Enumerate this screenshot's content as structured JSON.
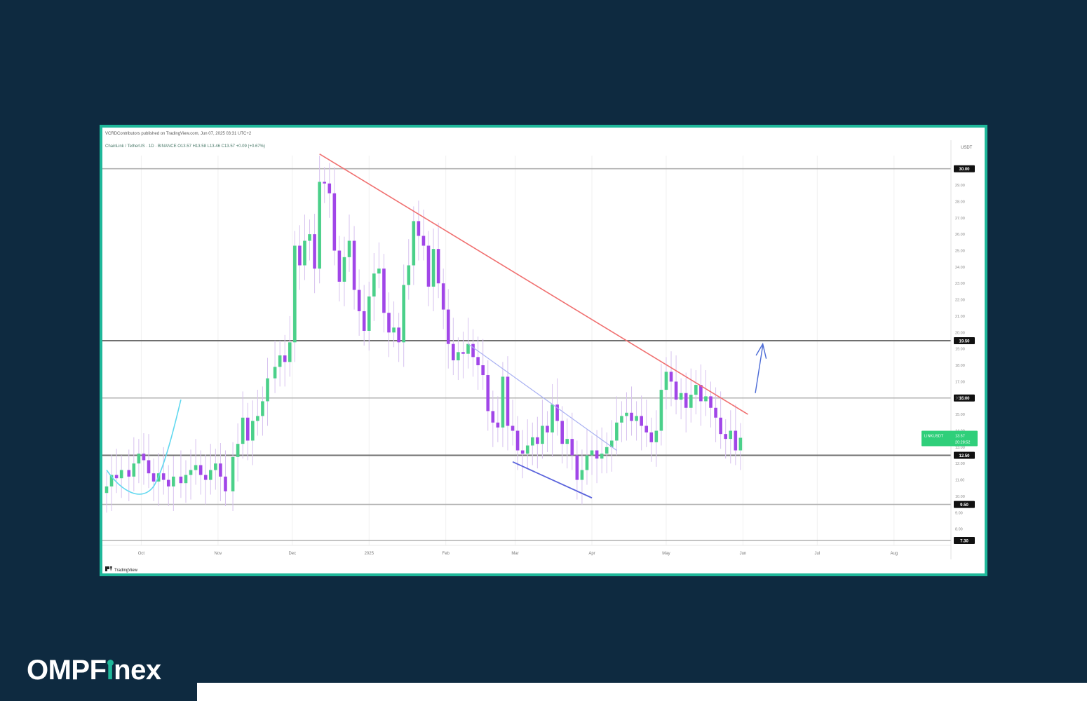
{
  "brand": {
    "logo_pre": "OMPF",
    "logo_i": "ı",
    "logo_post": "nex",
    "accent": "#1fb89a",
    "background": "#0e2a40"
  },
  "chart_data": {
    "type": "candlestick",
    "publisher": "VCRDContributors published on TradingView.com, Jun 07, 2025 03:31 UTC+2",
    "symbol_line": "ChainLink / TetherUS · 1D · BINANCE O13.57 H13.58 L13.46 C13.57 +0.09 (+0.67%)",
    "price_unit": "USDT",
    "footer_brand": "TradingView",
    "current_label": "LINKUSDT",
    "current_price": "13.57",
    "current_time": "20:28:52",
    "y_ticks": [
      "29.00",
      "28.00",
      "27.00",
      "26.00",
      "25.00",
      "24.00",
      "23.00",
      "22.00",
      "21.00",
      "20.00",
      "19.00",
      "18.00",
      "17.00",
      "16.00",
      "15.00",
      "14.00",
      "13.00",
      "12.00",
      "11.00",
      "10.00",
      "9.00",
      "8.00"
    ],
    "levels": [
      {
        "price": 30.0,
        "label": "30.00"
      },
      {
        "price": 19.5,
        "label": "19.50"
      },
      {
        "price": 16.0,
        "label": "16.00"
      },
      {
        "price": 12.5,
        "label": "12.50"
      },
      {
        "price": 9.5,
        "label": "9.50"
      },
      {
        "price": 7.3,
        "label": "7.30"
      }
    ],
    "x_labels": [
      "Oct",
      "Nov",
      "Dec",
      "2025",
      "Feb",
      "Mar",
      "Apr",
      "May",
      "Jun",
      "Jul",
      "Aug"
    ],
    "x_label_days": [
      8,
      39,
      69,
      100,
      131,
      159,
      190,
      220,
      251,
      281,
      312
    ],
    "ylim": [
      7.0,
      30.8
    ],
    "xlim": [
      -6,
      335
    ],
    "colors": {
      "up": "#4bd08a",
      "down": "#a146e8",
      "wick": "#d7c2ef",
      "level": "#9a9a9a",
      "resistance": "#f07070",
      "channel": "#a9b1f2",
      "support": "#5a63dc",
      "arrow": "#4a6ad6",
      "curve": "#60d8ef"
    },
    "candles": [
      {
        "day": -6,
        "close": 10.6
      },
      {
        "day": -4,
        "close": 11.3
      },
      {
        "day": -2,
        "close": 11.1
      },
      {
        "day": 0,
        "close": 11.6
      },
      {
        "day": 3,
        "close": 11.2
      },
      {
        "day": 5,
        "close": 12.0
      },
      {
        "day": 7,
        "close": 12.6
      },
      {
        "day": 9,
        "close": 12.2
      },
      {
        "day": 11,
        "close": 11.4
      },
      {
        "day": 13,
        "close": 10.9
      },
      {
        "day": 15,
        "close": 11.4
      },
      {
        "day": 17,
        "close": 11.0
      },
      {
        "day": 19,
        "close": 10.6
      },
      {
        "day": 21,
        "close": 11.2
      },
      {
        "day": 24,
        "close": 10.8
      },
      {
        "day": 26,
        "close": 11.3
      },
      {
        "day": 28,
        "close": 11.6
      },
      {
        "day": 30,
        "close": 11.9
      },
      {
        "day": 32,
        "close": 11.3
      },
      {
        "day": 34,
        "close": 11.0
      },
      {
        "day": 36,
        "close": 11.6
      },
      {
        "day": 38,
        "close": 12.0
      },
      {
        "day": 40,
        "close": 11.2
      },
      {
        "day": 42,
        "close": 10.3
      },
      {
        "day": 45,
        "close": 12.4
      },
      {
        "day": 47,
        "close": 13.2
      },
      {
        "day": 49,
        "close": 14.8
      },
      {
        "day": 51,
        "close": 13.4
      },
      {
        "day": 53,
        "close": 14.6
      },
      {
        "day": 55,
        "close": 14.9
      },
      {
        "day": 57,
        "close": 15.8
      },
      {
        "day": 59,
        "close": 17.2
      },
      {
        "day": 62,
        "close": 17.9
      },
      {
        "day": 64,
        "close": 18.6
      },
      {
        "day": 66,
        "close": 18.2
      },
      {
        "day": 68,
        "close": 19.4
      },
      {
        "day": 70,
        "close": 25.3
      },
      {
        "day": 72,
        "close": 24.1
      },
      {
        "day": 74,
        "close": 25.6
      },
      {
        "day": 76,
        "close": 26.0
      },
      {
        "day": 78,
        "close": 23.9
      },
      {
        "day": 80,
        "close": 29.2
      },
      {
        "day": 82,
        "close": 29.1
      },
      {
        "day": 84,
        "close": 28.5
      },
      {
        "day": 86,
        "close": 25.0
      },
      {
        "day": 88,
        "close": 23.1
      },
      {
        "day": 90,
        "close": 24.6
      },
      {
        "day": 92,
        "close": 25.6
      },
      {
        "day": 94,
        "close": 22.6
      },
      {
        "day": 96,
        "close": 21.3
      },
      {
        "day": 98,
        "close": 20.1
      },
      {
        "day": 100,
        "close": 22.2
      },
      {
        "day": 102,
        "close": 23.6
      },
      {
        "day": 104,
        "close": 23.9
      },
      {
        "day": 106,
        "close": 21.2
      },
      {
        "day": 108,
        "close": 20.0
      },
      {
        "day": 110,
        "close": 20.3
      },
      {
        "day": 112,
        "close": 19.4
      },
      {
        "day": 114,
        "close": 22.9
      },
      {
        "day": 116,
        "close": 24.1
      },
      {
        "day": 118,
        "close": 26.8
      },
      {
        "day": 120,
        "close": 25.9
      },
      {
        "day": 122,
        "close": 25.3
      },
      {
        "day": 124,
        "close": 22.8
      },
      {
        "day": 126,
        "close": 25.1
      },
      {
        "day": 128,
        "close": 23.0
      },
      {
        "day": 130,
        "close": 21.4
      },
      {
        "day": 132,
        "close": 19.3
      },
      {
        "day": 134,
        "close": 18.3
      },
      {
        "day": 136,
        "close": 18.8
      },
      {
        "day": 138,
        "close": 18.7
      },
      {
        "day": 140,
        "close": 19.3
      },
      {
        "day": 142,
        "close": 18.5
      },
      {
        "day": 144,
        "close": 18.0
      },
      {
        "day": 146,
        "close": 17.4
      },
      {
        "day": 148,
        "close": 15.2
      },
      {
        "day": 150,
        "close": 14.5
      },
      {
        "day": 152,
        "close": 14.2
      },
      {
        "day": 154,
        "close": 17.3
      },
      {
        "day": 156,
        "close": 14.3
      },
      {
        "day": 158,
        "close": 14.0
      },
      {
        "day": 160,
        "close": 12.8
      },
      {
        "day": 162,
        "close": 12.6
      },
      {
        "day": 164,
        "close": 13.1
      },
      {
        "day": 166,
        "close": 13.6
      },
      {
        "day": 168,
        "close": 13.2
      },
      {
        "day": 170,
        "close": 14.3
      },
      {
        "day": 172,
        "close": 13.9
      },
      {
        "day": 174,
        "close": 15.6
      },
      {
        "day": 176,
        "close": 14.6
      },
      {
        "day": 178,
        "close": 13.2
      },
      {
        "day": 180,
        "close": 13.5
      },
      {
        "day": 182,
        "close": 12.5
      },
      {
        "day": 184,
        "close": 11.0
      },
      {
        "day": 186,
        "close": 11.6
      },
      {
        "day": 188,
        "close": 12.5
      },
      {
        "day": 190,
        "close": 12.8
      },
      {
        "day": 192,
        "close": 12.3
      },
      {
        "day": 194,
        "close": 12.6
      },
      {
        "day": 196,
        "close": 13.0
      },
      {
        "day": 198,
        "close": 13.4
      },
      {
        "day": 200,
        "close": 14.5
      },
      {
        "day": 202,
        "close": 14.9
      },
      {
        "day": 204,
        "close": 15.1
      },
      {
        "day": 206,
        "close": 14.6
      },
      {
        "day": 208,
        "close": 14.9
      },
      {
        "day": 210,
        "close": 14.3
      },
      {
        "day": 212,
        "close": 13.9
      },
      {
        "day": 214,
        "close": 13.3
      },
      {
        "day": 216,
        "close": 14.0
      },
      {
        "day": 218,
        "close": 16.5
      },
      {
        "day": 220,
        "close": 17.6
      },
      {
        "day": 222,
        "close": 17.0
      },
      {
        "day": 224,
        "close": 15.9
      },
      {
        "day": 226,
        "close": 16.3
      },
      {
        "day": 228,
        "close": 15.4
      },
      {
        "day": 230,
        "close": 16.2
      },
      {
        "day": 232,
        "close": 16.8
      },
      {
        "day": 234,
        "close": 15.8
      },
      {
        "day": 236,
        "close": 16.1
      },
      {
        "day": 238,
        "close": 15.4
      },
      {
        "day": 240,
        "close": 14.8
      },
      {
        "day": 242,
        "close": 13.8
      },
      {
        "day": 244,
        "close": 13.5
      },
      {
        "day": 246,
        "close": 14.0
      },
      {
        "day": 248,
        "close": 12.8
      },
      {
        "day": 250,
        "close": 13.57
      }
    ]
  }
}
